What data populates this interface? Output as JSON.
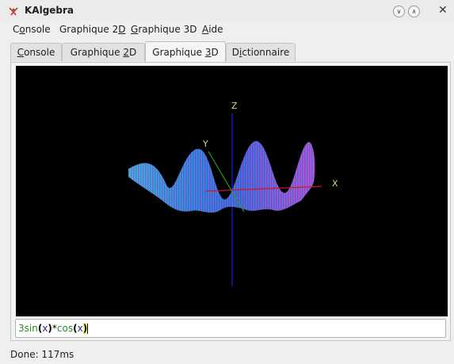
{
  "window": {
    "title": "KAlgebra",
    "app_icon": "kalgebra-icon",
    "buttons": [
      "minimize-icon",
      "maximize-icon",
      "close-icon"
    ]
  },
  "menubar": {
    "items": [
      {
        "pre": "C",
        "ul": "o",
        "post": "nsole"
      },
      {
        "pre": "Graphique 2",
        "ul": "D",
        "post": ""
      },
      {
        "pre": "",
        "ul": "G",
        "post": "raphique 3D"
      },
      {
        "pre": "",
        "ul": "A",
        "post": "ide"
      }
    ]
  },
  "tabs": [
    {
      "pre": "",
      "ul": "C",
      "post": "onsole",
      "active": false
    },
    {
      "pre": "Graphique ",
      "ul": "2",
      "post": "D",
      "active": false
    },
    {
      "pre": "Graphique ",
      "ul": "3",
      "post": "D",
      "active": true
    },
    {
      "pre": "D",
      "ul": "i",
      "post": "ctionnaire",
      "active": false
    }
  ],
  "plot": {
    "axis_labels": {
      "x": "X",
      "y": "Y",
      "z": "Z"
    },
    "axis_colors": {
      "x": "#d01818",
      "y": "#20a020",
      "z": "#2020d0",
      "label": "#d8d870"
    }
  },
  "expression": {
    "parts": [
      {
        "text": "3sin",
        "color": "#2a8a2a"
      },
      {
        "text": "(",
        "color": "#000000",
        "bold": true
      },
      {
        "text": "x",
        "color": "#2a2a9a"
      },
      {
        "text": ")",
        "color": "#000000",
        "bold": true
      },
      {
        "text": "*",
        "color": "#000000"
      },
      {
        "text": "cos",
        "color": "#2a8a2a"
      },
      {
        "text": "(",
        "color": "#000000",
        "bold": true
      },
      {
        "text": "x",
        "color": "#2a2a9a"
      },
      {
        "text": ")",
        "color": "#000000",
        "bold": true,
        "highlight": "#f2f27a"
      }
    ]
  },
  "status": "Done: 117ms"
}
